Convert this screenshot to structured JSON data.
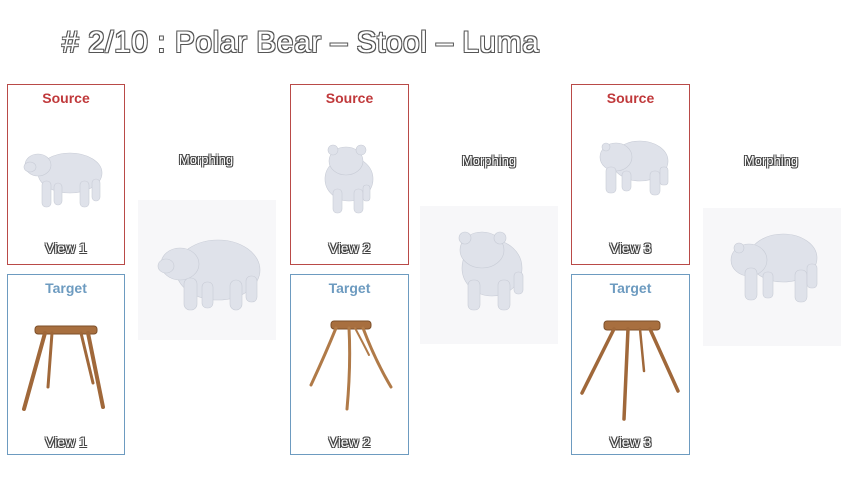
{
  "title": "# 2/10 : Polar Bear – Stool – Luma",
  "colors": {
    "source_border": "#b94a48",
    "source_header": "#c0393b",
    "target_border": "#6d9bc0",
    "target_header": "#6d9bc0",
    "bear": "#dfe2ea",
    "stool": "#a0683a"
  },
  "columns": [
    {
      "source": {
        "header": "Source",
        "view_label": "View 1"
      },
      "target": {
        "header": "Target",
        "view_label": "View 1"
      },
      "morph_label": "Morphing"
    },
    {
      "source": {
        "header": "Source",
        "view_label": "View 2"
      },
      "target": {
        "header": "Target",
        "view_label": "View 2"
      },
      "morph_label": "Morphing"
    },
    {
      "source": {
        "header": "Source",
        "view_label": "View 3"
      },
      "target": {
        "header": "Target",
        "view_label": "View 3"
      },
      "morph_label": "Morphing"
    }
  ]
}
